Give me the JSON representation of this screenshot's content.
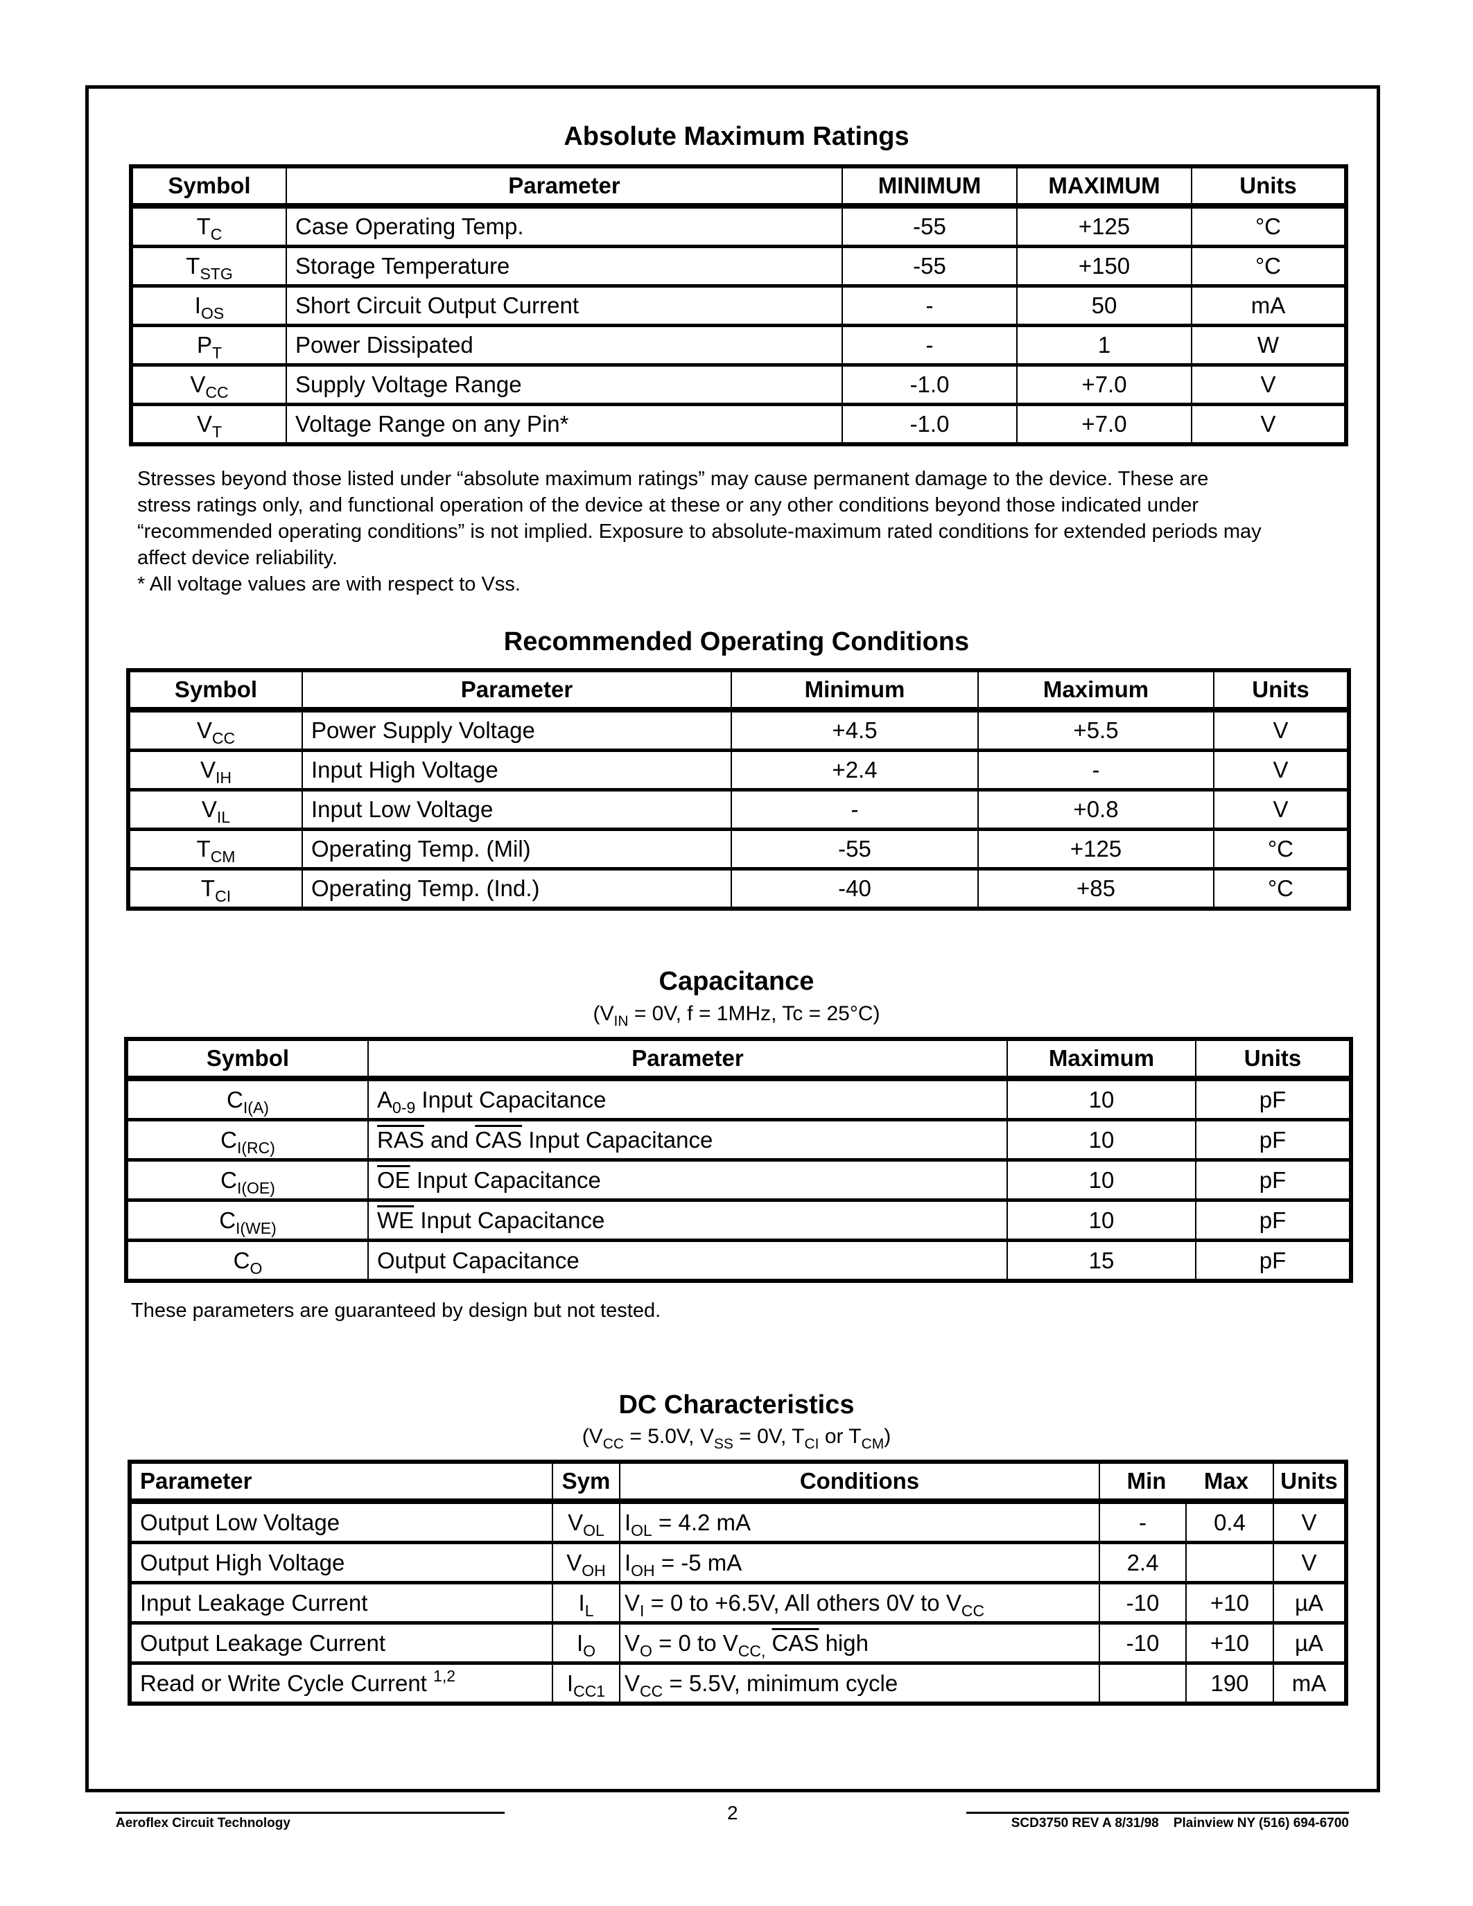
{
  "abs_max": {
    "title": "Absolute Maximum Ratings",
    "headers": [
      "Symbol",
      "Parameter",
      "MINIMUM",
      "MAXIMUM",
      "Units"
    ],
    "rows": [
      {
        "symbol": [
          "T",
          {
            "sub": "C"
          }
        ],
        "parameter": [
          "Case Operating Temp."
        ],
        "min": "-55",
        "max": "+125",
        "units": "°C"
      },
      {
        "symbol": [
          "T",
          {
            "sub": "STG"
          }
        ],
        "parameter": [
          "Storage Temperature"
        ],
        "min": "-55",
        "max": "+150",
        "units": "°C"
      },
      {
        "symbol": [
          "I",
          {
            "sub": "OS"
          }
        ],
        "parameter": [
          "Short Circuit Output Current"
        ],
        "min": "-",
        "max": "50",
        "units": "mA"
      },
      {
        "symbol": [
          "P",
          {
            "sub": "T"
          }
        ],
        "parameter": [
          "Power Dissipated"
        ],
        "min": "-",
        "max": "1",
        "units": "W"
      },
      {
        "symbol": [
          "V",
          {
            "sub": "CC"
          }
        ],
        "parameter": [
          "Supply Voltage Range"
        ],
        "min": "-1.0",
        "max": "+7.0",
        "units": "V"
      },
      {
        "symbol": [
          "V",
          {
            "sub": "T"
          }
        ],
        "parameter": [
          "Voltage Range on any Pin*"
        ],
        "min": "-1.0",
        "max": "+7.0",
        "units": "V"
      }
    ],
    "note_lines": [
      "Stresses beyond those listed under “absolute maximum ratings” may cause permanent damage to the device. These are",
      "stress ratings only, and functional operation of the device at these or any other conditions beyond those indicated under",
      "“recommended operating conditions” is not implied. Exposure to absolute-maximum rated conditions for extended periods may",
      "affect device reliability.",
      "* All voltage values are with respect to Vss."
    ]
  },
  "rec_op": {
    "title": "Recommended Operating Conditions",
    "headers": [
      "Symbol",
      "Parameter",
      "Minimum",
      "Maximum",
      "Units"
    ],
    "rows": [
      {
        "symbol": [
          "V",
          {
            "sub": "CC"
          }
        ],
        "parameter": [
          "Power Supply Voltage"
        ],
        "min": "+4.5",
        "max": "+5.5",
        "units": "V"
      },
      {
        "symbol": [
          "V",
          {
            "sub": "IH"
          }
        ],
        "parameter": [
          "Input High Voltage"
        ],
        "min": "+2.4",
        "max": "-",
        "units": "V"
      },
      {
        "symbol": [
          "V",
          {
            "sub": "IL"
          }
        ],
        "parameter": [
          "Input Low Voltage"
        ],
        "min": "-",
        "max": "+0.8",
        "units": "V"
      },
      {
        "symbol": [
          "T",
          {
            "sub": "CM"
          }
        ],
        "parameter": [
          "Operating Temp. (Mil)"
        ],
        "min": "-55",
        "max": "+125",
        "units": "°C"
      },
      {
        "symbol": [
          "T",
          {
            "sub": "CI"
          }
        ],
        "parameter": [
          "Operating Temp. (Ind.)"
        ],
        "min": "-40",
        "max": "+85",
        "units": "°C"
      }
    ]
  },
  "capacitance": {
    "title": "Capacitance",
    "subtitle": [
      "(V",
      {
        "sub": "IN"
      },
      " = 0V, f = 1MHz, Tc = 25°C)"
    ],
    "headers": [
      "Symbol",
      "Parameter",
      "Maximum",
      "Units"
    ],
    "rows": [
      {
        "symbol": [
          "C",
          {
            "sub": "I(A)"
          }
        ],
        "parameter": [
          "A",
          {
            "sub": "0-9"
          },
          " Input Capacitance"
        ],
        "max": "10",
        "units": "pF"
      },
      {
        "symbol": [
          "C",
          {
            "sub": "I(RC)"
          }
        ],
        "parameter": [
          {
            "over": "RAS"
          },
          " and ",
          {
            "over": "CAS"
          },
          " Input Capacitance"
        ],
        "max": "10",
        "units": "pF"
      },
      {
        "symbol": [
          "C",
          {
            "sub": "I(OE)"
          }
        ],
        "parameter": [
          {
            "over": "OE"
          },
          " Input Capacitance"
        ],
        "max": "10",
        "units": "pF"
      },
      {
        "symbol": [
          "C",
          {
            "sub": "I(WE)"
          }
        ],
        "parameter": [
          {
            "over": "WE"
          },
          " Input Capacitance"
        ],
        "max": "10",
        "units": "pF"
      },
      {
        "symbol": [
          "C",
          {
            "sub": "O"
          }
        ],
        "parameter": [
          "Output Capacitance"
        ],
        "max": "15",
        "units": "pF"
      }
    ],
    "note": "These parameters are guaranteed by design but not tested."
  },
  "dc": {
    "title": "DC Characteristics",
    "subtitle": [
      "(V",
      {
        "sub": "CC"
      },
      " = 5.0V, V",
      {
        "sub": "SS"
      },
      " = 0V, T",
      {
        "sub": "CI"
      },
      " or T",
      {
        "sub": "CM"
      },
      ")"
    ],
    "headers": {
      "parameter": "Parameter",
      "sym": "Sym",
      "conditions": "Conditions",
      "min": "Min",
      "max": "Max",
      "units": "Units"
    },
    "rows": [
      {
        "parameter": [
          "Output Low Voltage"
        ],
        "sym": [
          "V",
          {
            "sub": "OL"
          }
        ],
        "conditions": [
          "I",
          {
            "sub": "OL"
          },
          " = 4.2 mA"
        ],
        "min": "-",
        "max": "0.4",
        "units": "V"
      },
      {
        "parameter": [
          "Output High Voltage"
        ],
        "sym": [
          "V",
          {
            "sub": "OH"
          }
        ],
        "conditions": [
          "I",
          {
            "sub": "OH"
          },
          " = -5 mA"
        ],
        "min": "2.4",
        "max": "",
        "units": "V"
      },
      {
        "parameter": [
          "Input Leakage Current"
        ],
        "sym": [
          "I",
          {
            "sub": "L"
          }
        ],
        "conditions": [
          "V",
          {
            "sub": "I"
          },
          " = 0 to +6.5V, All others 0V to V",
          {
            "sub": "CC"
          }
        ],
        "min": "-10",
        "max": "+10",
        "units": "µA"
      },
      {
        "parameter": [
          "Output Leakage Current"
        ],
        "sym": [
          "I",
          {
            "sub": "O"
          }
        ],
        "conditions": [
          "V",
          {
            "sub": "O"
          },
          " = 0 to V",
          {
            "sub": "CC,"
          },
          " ",
          {
            "over": "CAS"
          },
          " high"
        ],
        "min": "-10",
        "max": "+10",
        "units": "µA"
      },
      {
        "parameter": [
          "Read or Write Cycle Current ",
          {
            "sup": "1,2"
          }
        ],
        "sym": [
          "I",
          {
            "sub": "CC1"
          }
        ],
        "conditions": [
          "V",
          {
            "sub": "CC"
          },
          "  = 5.5V, minimum cycle"
        ],
        "min": "",
        "max": "190",
        "units": "mA"
      }
    ]
  },
  "footer": {
    "company": "Aeroflex Circuit Technology",
    "page_number": "2",
    "doc_info": "SCD3750 REV A 8/31/98    Plainview NY (516) 694-6700"
  }
}
